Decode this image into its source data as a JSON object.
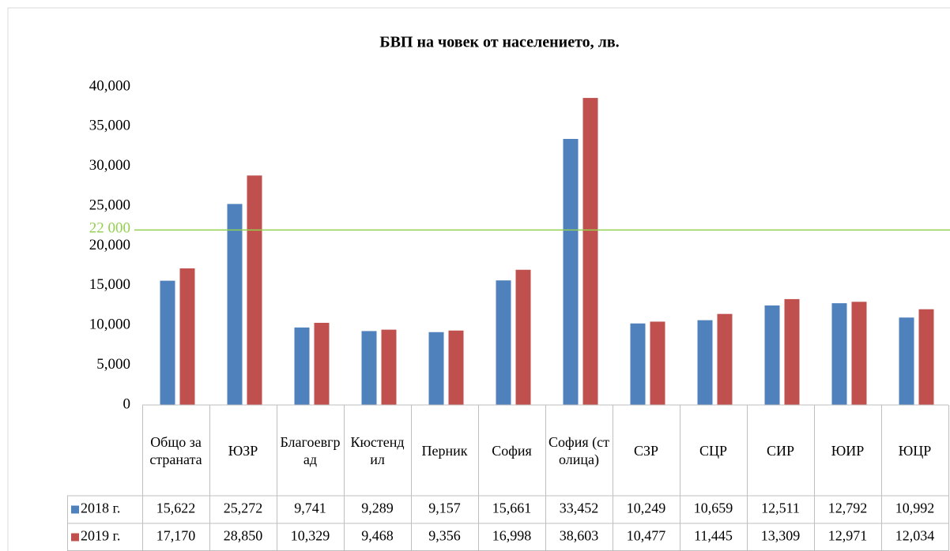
{
  "chart_data": {
    "type": "bar",
    "title": "БВП на човек от населението, лв.",
    "categories": [
      "Общо за страната",
      "ЮЗР",
      "Благоевград",
      "Кюстендил",
      "Перник",
      "София",
      "София (столица)",
      "СЗР",
      "СЦР",
      "СИР",
      "ЮИР",
      "ЮЦР"
    ],
    "series": [
      {
        "name": "2018 г.",
        "color": "#4f81bd",
        "values": [
          15622,
          25272,
          9741,
          9289,
          9157,
          15661,
          33452,
          10249,
          10659,
          12511,
          12792,
          10992
        ],
        "value_labels": [
          "15,622",
          "25,272",
          "9,741",
          "9,289",
          "9,157",
          "15,661",
          "33,452",
          "10,249",
          "10,659",
          "12,511",
          "12,792",
          "10,992"
        ]
      },
      {
        "name": "2019 г.",
        "color": "#c0504d",
        "values": [
          17170,
          28850,
          10329,
          9468,
          9356,
          16998,
          38603,
          10477,
          11445,
          13309,
          12971,
          12034
        ],
        "value_labels": [
          "17,170",
          "28,850",
          "10,329",
          "9,468",
          "9,356",
          "16,998",
          "38,603",
          "10,477",
          "11,445",
          "13,309",
          "12,971",
          "12,034"
        ]
      }
    ],
    "ylim": [
      0,
      40000
    ],
    "yticks": [
      0,
      {
        "value": 5000,
        "label": "5,000"
      },
      {
        "value": 10000,
        "label": "10,000"
      },
      {
        "value": 15000,
        "label": "15,000"
      },
      {
        "value": 20000,
        "label": "20,000"
      },
      {
        "value": 25000,
        "label": "25,000"
      },
      {
        "value": 30000,
        "label": "30,000"
      },
      {
        "value": 35000,
        "label": "35,000"
      },
      {
        "value": 40000,
        "label": "40,000"
      }
    ],
    "reference_line": {
      "value": 22000,
      "label": "22 000",
      "color": "#92d050"
    },
    "data_table": true
  }
}
